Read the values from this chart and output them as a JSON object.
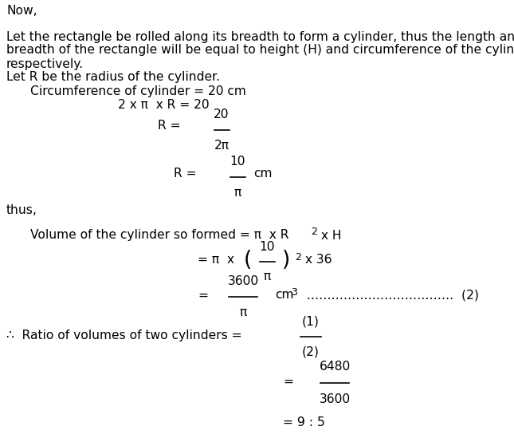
{
  "bg_color": "#ffffff",
  "text_color": "#000000",
  "figsize": [
    6.45,
    5.59
  ],
  "dpi": 100,
  "font_size": 11.2,
  "font_family": "DejaVu Sans"
}
